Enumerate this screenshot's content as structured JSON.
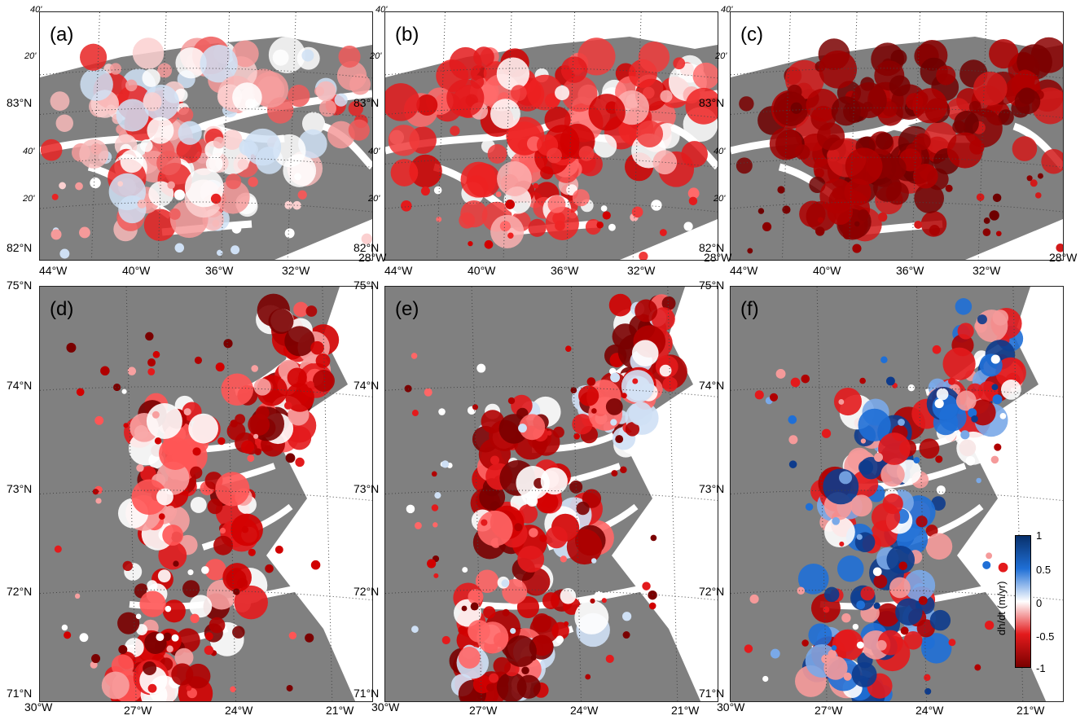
{
  "panels": [
    {
      "label": "(a)",
      "region": "north",
      "scheme": "a"
    },
    {
      "label": "(b)",
      "region": "north",
      "scheme": "b"
    },
    {
      "label": "(c)",
      "region": "north",
      "scheme": "c"
    },
    {
      "label": "(d)",
      "region": "south",
      "scheme": "d"
    },
    {
      "label": "(e)",
      "region": "south",
      "scheme": "e"
    },
    {
      "label": "(f)",
      "region": "south",
      "scheme": "f"
    }
  ],
  "north_axes": {
    "lon_ticks": [
      "44°W",
      "40°W",
      "36°W",
      "32°W",
      "28°W"
    ],
    "lat_ticks": [
      "83°N",
      "82°N"
    ],
    "minor_ticks": [
      "40'",
      "20'",
      "40'",
      "20'"
    ]
  },
  "south_axes": {
    "lon_ticks": [
      "30°W",
      "27°W",
      "24°W",
      "21°W"
    ],
    "lat_ticks": [
      "75°N",
      "74°N",
      "73°N",
      "72°N",
      "71°N"
    ]
  },
  "colorbar": {
    "title": "dh/dt (m/yr)",
    "ticks": [
      "1",
      "0.5",
      "0",
      "-0.5",
      "-1"
    ],
    "range": [
      -1,
      1
    ],
    "colors": [
      "#08306b",
      "#1f6fd6",
      "#ffffff",
      "#e31a1c",
      "#7a0000"
    ]
  },
  "colors": {
    "land": "#808080",
    "ocean": "#ffffff",
    "grid": "#444444"
  }
}
